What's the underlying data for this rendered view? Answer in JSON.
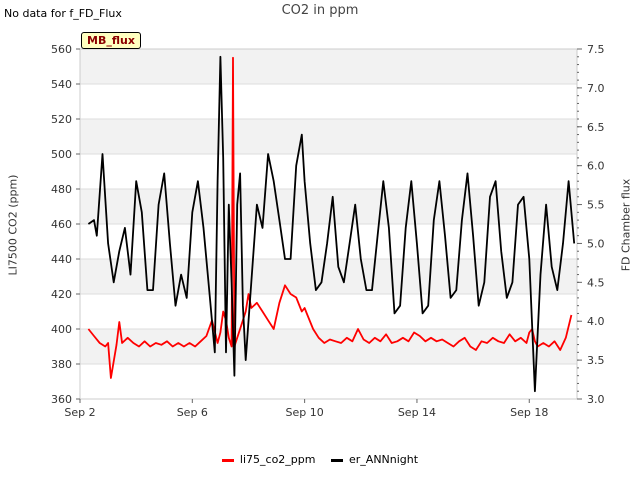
{
  "header": {
    "nodata_text": "No data for f_FD_Flux",
    "badge_text": "MB_flux"
  },
  "chart_data": {
    "type": "line",
    "title": "CO2 in ppm",
    "xlabel": "",
    "ylabel": "LI7500 CO2 (ppm)",
    "ylabel_right": "FD Chamber flux",
    "ylim": [
      360,
      560
    ],
    "ylim_right": [
      3.0,
      7.5
    ],
    "yticks": [
      360,
      380,
      400,
      420,
      440,
      460,
      480,
      500,
      520,
      540,
      560
    ],
    "yticks_right": [
      "3.0",
      "3.5",
      "4.0",
      "4.5",
      "5.0",
      "5.5",
      "6.0",
      "6.5",
      "7.0",
      "7.5"
    ],
    "xlim": [
      2,
      19.7
    ],
    "xticks": [
      {
        "value": 2,
        "label": "Sep 2"
      },
      {
        "value": 6,
        "label": "Sep 6"
      },
      {
        "value": 10,
        "label": "Sep 10"
      },
      {
        "value": 14,
        "label": "Sep 14"
      },
      {
        "value": 18,
        "label": "Sep 18"
      }
    ],
    "colors": {
      "li75_co2_ppm": "#ff0000",
      "er_ANNnight": "#000000"
    },
    "series": [
      {
        "name": "li75_co2_ppm",
        "axis": "left",
        "x": [
          2.3,
          2.5,
          2.7,
          2.9,
          3.0,
          3.1,
          3.3,
          3.4,
          3.5,
          3.7,
          3.9,
          4.1,
          4.3,
          4.5,
          4.7,
          4.9,
          5.1,
          5.3,
          5.5,
          5.7,
          5.9,
          6.1,
          6.3,
          6.5,
          6.7,
          6.9,
          7.0,
          7.1,
          7.2,
          7.3,
          7.4,
          7.45,
          7.5,
          7.6,
          7.7,
          7.8,
          7.9,
          8.0,
          8.1,
          8.3,
          8.5,
          8.7,
          8.9,
          9.1,
          9.3,
          9.5,
          9.7,
          9.9,
          10.0,
          10.1,
          10.3,
          10.5,
          10.7,
          10.9,
          11.1,
          11.3,
          11.5,
          11.7,
          11.9,
          12.1,
          12.3,
          12.5,
          12.7,
          12.9,
          13.1,
          13.3,
          13.5,
          13.7,
          13.9,
          14.1,
          14.3,
          14.5,
          14.7,
          14.9,
          15.1,
          15.3,
          15.5,
          15.7,
          15.9,
          16.1,
          16.3,
          16.5,
          16.7,
          16.9,
          17.1,
          17.3,
          17.5,
          17.7,
          17.9,
          18.0,
          18.1,
          18.2,
          18.3,
          18.5,
          18.7,
          18.9,
          19.1,
          19.3,
          19.5
        ],
        "values": [
          400,
          396,
          392,
          390,
          392,
          372,
          391,
          404,
          392,
          395,
          392,
          390,
          393,
          390,
          392,
          391,
          393,
          390,
          392,
          390,
          392,
          390,
          393,
          396,
          405,
          392,
          398,
          410,
          405,
          395,
          390,
          555,
          390,
          395,
          400,
          405,
          410,
          420,
          412,
          415,
          410,
          405,
          400,
          415,
          425,
          420,
          418,
          410,
          412,
          408,
          400,
          395,
          392,
          394,
          393,
          392,
          395,
          393,
          400,
          394,
          392,
          395,
          393,
          397,
          392,
          393,
          395,
          393,
          398,
          396,
          393,
          395,
          393,
          394,
          392,
          390,
          393,
          395,
          390,
          388,
          393,
          392,
          395,
          393,
          392,
          397,
          393,
          395,
          392,
          398,
          400,
          393,
          390,
          392,
          390,
          393,
          388,
          395,
          408
        ]
      },
      {
        "name": "er_ANNnight",
        "axis": "right",
        "x": [
          2.3,
          2.5,
          2.6,
          2.8,
          3.0,
          3.2,
          3.4,
          3.6,
          3.8,
          4.0,
          4.2,
          4.4,
          4.6,
          4.8,
          5.0,
          5.2,
          5.4,
          5.6,
          5.8,
          6.0,
          6.2,
          6.4,
          6.6,
          6.8,
          6.9,
          7.0,
          7.1,
          7.2,
          7.3,
          7.4,
          7.5,
          7.6,
          7.7,
          7.8,
          7.9,
          8.1,
          8.3,
          8.5,
          8.7,
          8.9,
          9.1,
          9.3,
          9.5,
          9.7,
          9.9,
          10.0,
          10.2,
          10.4,
          10.6,
          10.8,
          11.0,
          11.2,
          11.4,
          11.6,
          11.8,
          12.0,
          12.2,
          12.4,
          12.6,
          12.8,
          13.0,
          13.2,
          13.4,
          13.6,
          13.8,
          14.0,
          14.2,
          14.4,
          14.6,
          14.8,
          15.0,
          15.2,
          15.4,
          15.6,
          15.8,
          16.0,
          16.2,
          16.4,
          16.6,
          16.8,
          17.0,
          17.2,
          17.4,
          17.6,
          17.8,
          18.0,
          18.2,
          18.4,
          18.6,
          18.8,
          19.0,
          19.2,
          19.4,
          19.6
        ],
        "values": [
          5.25,
          5.3,
          5.1,
          6.15,
          5.0,
          4.5,
          4.9,
          5.2,
          4.6,
          5.8,
          5.4,
          4.4,
          4.4,
          5.5,
          5.9,
          5.0,
          4.2,
          4.6,
          4.3,
          5.4,
          5.8,
          5.2,
          4.4,
          3.6,
          5.8,
          7.4,
          6.1,
          3.6,
          5.5,
          4.5,
          3.3,
          5.5,
          5.9,
          4.2,
          3.5,
          4.5,
          5.5,
          5.2,
          6.15,
          5.8,
          5.3,
          4.8,
          4.8,
          6.0,
          6.4,
          5.8,
          5.0,
          4.4,
          4.5,
          5.0,
          5.6,
          4.7,
          4.5,
          5.0,
          5.5,
          4.8,
          4.4,
          4.4,
          5.1,
          5.8,
          5.2,
          4.1,
          4.2,
          5.2,
          5.8,
          5.0,
          4.1,
          4.2,
          5.3,
          5.8,
          5.1,
          4.3,
          4.4,
          5.3,
          5.9,
          5.1,
          4.2,
          4.5,
          5.6,
          5.8,
          4.9,
          4.3,
          4.5,
          5.5,
          5.6,
          4.8,
          3.1,
          4.6,
          5.5,
          4.7,
          4.4,
          5.0,
          5.8,
          5.0
        ]
      }
    ]
  }
}
